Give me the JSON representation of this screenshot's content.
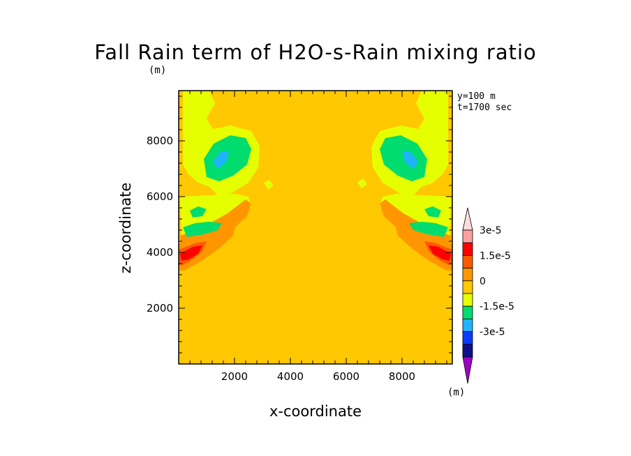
{
  "chart_data": {
    "type": "heatmap",
    "title": "Fall Rain term of H2O-s-Rain mixing ratio",
    "field_unit": "(m)",
    "colorbar_unit": "(m)",
    "info_lines": [
      "y=100 m",
      "t=1700 sec"
    ],
    "xlabel": "x-coordinate",
    "ylabel": "z-coordinate",
    "xlim": [
      0,
      9800
    ],
    "ylim": [
      0,
      9800
    ],
    "xticks": [
      2000,
      4000,
      6000,
      8000
    ],
    "yticks": [
      2000,
      4000,
      6000,
      8000
    ],
    "background_level": "0 to 3.75e-6",
    "colorbar": {
      "levels": [
        "-3e-5",
        "-1.5e-5",
        "0",
        "1.5e-5",
        "3e-5"
      ],
      "colors": [
        "#a000c8",
        "#10108c",
        "#0a3cff",
        "#1eb4ff",
        "#00dc6e",
        "#e6ff00",
        "#ffc800",
        "#ff9600",
        "#ff5a00",
        "#ff0000",
        "#ffa0a0",
        "#ffdcdc"
      ]
    },
    "regions": [
      {
        "x": 800,
        "z": 6800,
        "value": -1.5e-05,
        "note": "green/cyan upper-left lobe"
      },
      {
        "x": 9000,
        "z": 6800,
        "value": -1.5e-05,
        "note": "green/cyan upper-right lobe"
      },
      {
        "x": 500,
        "z": 4100,
        "value": 2.25e-05,
        "note": "red maximum lower-left"
      },
      {
        "x": 9300,
        "z": 4100,
        "value": 2.25e-05,
        "note": "red maximum lower-right"
      }
    ]
  }
}
